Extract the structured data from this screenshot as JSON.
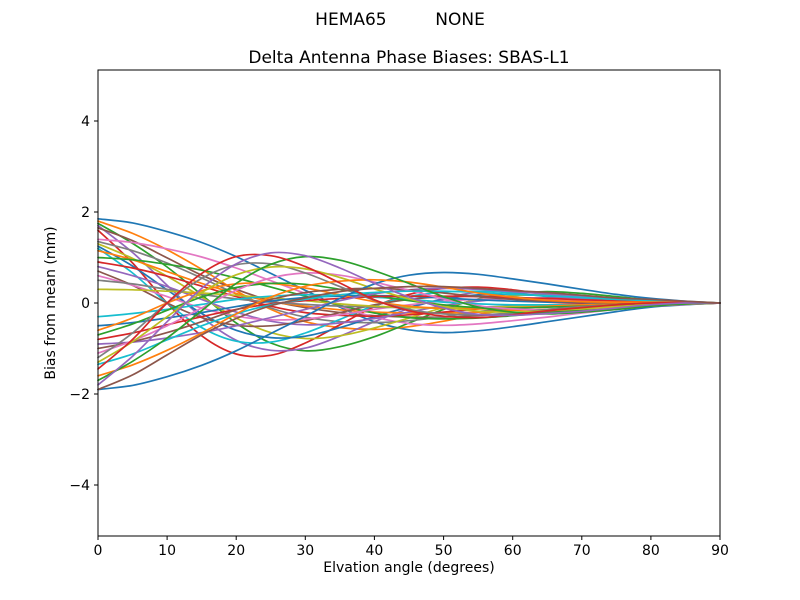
{
  "figure": {
    "background": "#ffffff",
    "axes_color": "#000000",
    "text_color": "#000000"
  },
  "chart_data": {
    "type": "line",
    "suptitle": "HEMA65         NONE",
    "title": "Delta Antenna Phase Biases: SBAS-L1",
    "xlabel": "Elvation angle (degrees)",
    "ylabel": "Bias from mean (mm)",
    "xlim": [
      0,
      90
    ],
    "ylim": [
      -5.12,
      5.12
    ],
    "x_ticks": [
      0,
      10,
      20,
      30,
      40,
      50,
      60,
      70,
      80,
      90
    ],
    "y_ticks": [
      -4,
      -2,
      0,
      2,
      4
    ],
    "y_tick_labels": [
      "−4",
      "−2",
      "0",
      "2",
      "4"
    ],
    "grid": false,
    "legend": "none",
    "palette": [
      "#1f77b4",
      "#ff7f0e",
      "#2ca02c",
      "#d62728",
      "#9467bd",
      "#8c564b",
      "#e377c2",
      "#7f7f7f",
      "#bcbd22",
      "#17becf"
    ],
    "x": [
      0,
      5,
      10,
      15,
      20,
      25,
      30,
      35,
      40,
      45,
      50,
      55,
      60,
      65,
      70,
      75,
      80,
      85,
      90
    ],
    "series": [
      [
        1.85,
        1.76,
        1.57,
        1.33,
        1.02,
        0.65,
        0.28,
        -0.09,
        -0.41,
        -0.59,
        -0.65,
        -0.61,
        -0.52,
        -0.41,
        -0.3,
        -0.19,
        -0.09,
        -0.04,
        0.0
      ],
      [
        1.8,
        1.53,
        1.17,
        0.74,
        0.27,
        -0.14,
        -0.41,
        -0.54,
        -0.58,
        -0.52,
        -0.4,
        -0.25,
        -0.14,
        -0.07,
        -0.04,
        -0.02,
        -0.02,
        -0.02,
        0.0
      ],
      [
        1.75,
        1.31,
        0.79,
        0.18,
        -0.44,
        -0.88,
        -1.05,
        -0.96,
        -0.74,
        -0.44,
        -0.14,
        0.09,
        0.21,
        0.25,
        0.21,
        0.14,
        0.07,
        0.02,
        0.0
      ],
      [
        1.6,
        0.88,
        0.0,
        -0.72,
        -1.12,
        -1.15,
        -0.88,
        -0.48,
        -0.08,
        0.19,
        0.32,
        0.35,
        0.29,
        0.19,
        0.11,
        0.05,
        0.0,
        -0.02,
        0.0
      ],
      [
        1.7,
        1.11,
        0.39,
        -0.31,
        -0.82,
        -1.04,
        -0.99,
        -0.73,
        -0.41,
        -0.12,
        0.1,
        0.24,
        0.26,
        0.22,
        0.17,
        0.1,
        0.03,
        0.0,
        0.0
      ],
      [
        1.65,
        1.37,
        0.99,
        0.61,
        0.3,
        0.05,
        -0.1,
        -0.21,
        -0.28,
        -0.31,
        -0.31,
        -0.28,
        -0.23,
        -0.2,
        -0.15,
        -0.1,
        -0.07,
        -0.03,
        0.0
      ],
      [
        1.4,
        1.33,
        1.19,
        1.01,
        0.77,
        0.49,
        0.21,
        -0.07,
        -0.31,
        -0.45,
        -0.49,
        -0.46,
        -0.39,
        -0.31,
        -0.22,
        -0.14,
        -0.07,
        -0.03,
        0.0
      ],
      [
        1.35,
        1.15,
        0.88,
        0.55,
        0.2,
        -0.11,
        -0.31,
        -0.41,
        -0.43,
        -0.39,
        -0.3,
        -0.19,
        -0.11,
        -0.05,
        -0.03,
        -0.01,
        -0.01,
        -0.01,
        0.0
      ],
      [
        1.3,
        0.98,
        0.59,
        0.13,
        -0.33,
        -0.65,
        -0.78,
        -0.72,
        -0.55,
        -0.33,
        -0.1,
        0.07,
        0.16,
        0.18,
        0.16,
        0.1,
        0.05,
        0.01,
        0.0
      ],
      [
        1.2,
        0.66,
        0.0,
        -0.54,
        -0.84,
        -0.86,
        -0.66,
        -0.36,
        -0.06,
        0.14,
        0.24,
        0.26,
        0.22,
        0.14,
        0.08,
        0.04,
        0.0,
        -0.01,
        0.0
      ],
      [
        1.25,
        0.81,
        0.29,
        -0.23,
        -0.6,
        -0.76,
        -0.73,
        -0.54,
        -0.3,
        -0.09,
        0.08,
        0.18,
        0.19,
        0.16,
        0.13,
        0.08,
        0.03,
        0.0,
        0.0
      ],
      [
        1.15,
        0.95,
        0.69,
        0.43,
        0.21,
        0.03,
        -0.07,
        -0.15,
        -0.2,
        -0.22,
        -0.22,
        -0.2,
        -0.16,
        -0.14,
        -0.1,
        -0.07,
        -0.05,
        -0.02,
        0.0
      ],
      [
        1.0,
        0.95,
        0.85,
        0.72,
        0.55,
        0.35,
        0.15,
        -0.05,
        -0.22,
        -0.32,
        -0.35,
        -0.33,
        -0.28,
        -0.22,
        -0.16,
        -0.1,
        -0.05,
        -0.02,
        0.0
      ],
      [
        0.9,
        0.77,
        0.59,
        0.37,
        0.14,
        -0.07,
        -0.21,
        -0.27,
        -0.29,
        -0.26,
        -0.2,
        -0.13,
        -0.07,
        -0.04,
        -0.02,
        -0.01,
        -0.01,
        -0.01,
        0.0
      ],
      [
        0.8,
        0.6,
        0.36,
        0.08,
        -0.2,
        -0.4,
        -0.48,
        -0.44,
        -0.34,
        -0.2,
        -0.06,
        0.04,
        0.1,
        0.11,
        0.1,
        0.06,
        0.03,
        0.01,
        0.0
      ],
      [
        0.7,
        0.39,
        0.0,
        -0.32,
        -0.49,
        -0.5,
        -0.39,
        -0.21,
        -0.04,
        0.08,
        0.14,
        0.15,
        0.13,
        0.08,
        0.05,
        0.02,
        0.0,
        -0.01,
        0.0
      ],
      [
        0.6,
        0.39,
        0.14,
        -0.11,
        -0.29,
        -0.37,
        -0.35,
        -0.26,
        -0.14,
        -0.04,
        0.04,
        0.08,
        0.09,
        0.08,
        0.06,
        0.04,
        0.01,
        0.0,
        0.0
      ],
      [
        0.5,
        0.42,
        0.3,
        0.19,
        0.09,
        0.02,
        -0.03,
        -0.07,
        -0.09,
        -0.1,
        -0.1,
        -0.09,
        -0.07,
        -0.06,
        -0.05,
        -0.03,
        -0.02,
        -0.01,
        0.0
      ],
      [
        0.3,
        0.29,
        0.26,
        0.22,
        0.17,
        0.11,
        0.05,
        -0.02,
        -0.07,
        -0.1,
        -0.11,
        -0.1,
        -0.08,
        -0.07,
        -0.05,
        -0.03,
        -0.02,
        -0.01,
        0.0
      ],
      [
        -0.3,
        -0.23,
        -0.14,
        -0.03,
        0.08,
        0.15,
        0.18,
        0.17,
        0.13,
        0.08,
        0.02,
        -0.02,
        -0.04,
        -0.04,
        -0.04,
        -0.02,
        -0.01,
        0.0,
        0.0
      ],
      [
        -0.5,
        -0.43,
        -0.33,
        -0.21,
        -0.08,
        0.04,
        0.12,
        0.15,
        0.16,
        0.15,
        0.11,
        0.07,
        0.04,
        0.02,
        0.01,
        0.01,
        0.01,
        0.01,
        0.0
      ],
      [
        -0.6,
        -0.33,
        0.0,
        0.27,
        0.42,
        0.43,
        0.33,
        0.18,
        0.03,
        -0.07,
        -0.12,
        -0.13,
        -0.11,
        -0.07,
        -0.04,
        -0.02,
        0.0,
        0.01,
        0.0
      ],
      [
        -0.7,
        -0.46,
        -0.16,
        0.13,
        0.34,
        0.43,
        0.41,
        0.3,
        0.17,
        0.05,
        -0.04,
        -0.1,
        -0.11,
        -0.09,
        -0.07,
        -0.04,
        -0.01,
        0.0,
        0.0
      ],
      [
        -0.8,
        -0.66,
        -0.48,
        -0.3,
        -0.14,
        -0.02,
        0.05,
        0.1,
        0.14,
        0.15,
        0.15,
        0.14,
        0.11,
        0.1,
        0.07,
        0.05,
        0.03,
        0.02,
        0.0
      ],
      [
        -0.9,
        -0.86,
        -0.77,
        -0.65,
        -0.5,
        -0.32,
        -0.14,
        0.05,
        0.2,
        0.29,
        0.32,
        0.3,
        0.25,
        0.2,
        0.14,
        0.09,
        0.05,
        0.02,
        0.0
      ],
      [
        -1.0,
        -0.85,
        -0.65,
        -0.41,
        -0.15,
        0.08,
        0.23,
        0.3,
        0.32,
        0.29,
        0.22,
        0.14,
        0.08,
        0.04,
        0.02,
        0.01,
        0.01,
        0.01,
        0.0
      ],
      [
        -1.1,
        -0.83,
        -0.5,
        -0.11,
        0.28,
        0.55,
        0.66,
        0.61,
        0.46,
        0.28,
        0.09,
        -0.06,
        -0.13,
        -0.15,
        -0.13,
        -0.09,
        -0.04,
        -0.01,
        0.0
      ],
      [
        -1.2,
        -0.66,
        0.0,
        0.54,
        0.84,
        0.86,
        0.66,
        0.36,
        0.06,
        -0.14,
        -0.24,
        -0.26,
        -0.22,
        -0.14,
        -0.08,
        -0.04,
        0.0,
        0.01,
        0.0
      ],
      [
        -1.3,
        -0.85,
        -0.3,
        0.23,
        0.62,
        0.79,
        0.75,
        0.56,
        0.31,
        0.09,
        -0.08,
        -0.18,
        -0.2,
        -0.17,
        -0.13,
        -0.08,
        -0.03,
        0.0,
        0.0
      ],
      [
        -1.35,
        -1.12,
        -0.81,
        -0.5,
        -0.24,
        -0.04,
        0.08,
        0.18,
        0.23,
        0.26,
        0.26,
        0.23,
        0.19,
        0.16,
        0.12,
        0.08,
        0.05,
        0.03,
        0.0
      ],
      [
        -1.9,
        -1.81,
        -1.62,
        -1.37,
        -1.05,
        -0.67,
        -0.29,
        0.1,
        0.42,
        0.61,
        0.67,
        0.63,
        0.53,
        0.42,
        0.3,
        0.19,
        0.1,
        0.04,
        0.0
      ],
      [
        -1.6,
        -1.36,
        -1.04,
        -0.66,
        -0.24,
        0.13,
        0.37,
        0.48,
        0.51,
        0.46,
        0.35,
        0.22,
        0.13,
        0.06,
        0.03,
        0.02,
        0.02,
        0.02,
        0.0
      ],
      [
        -1.7,
        -1.28,
        -0.77,
        -0.17,
        0.43,
        0.85,
        1.02,
        0.94,
        0.71,
        0.43,
        0.14,
        -0.09,
        -0.2,
        -0.24,
        -0.2,
        -0.14,
        -0.07,
        -0.02,
        0.0
      ],
      [
        -1.45,
        -0.8,
        0.0,
        0.65,
        1.02,
        1.04,
        0.8,
        0.44,
        0.07,
        -0.17,
        -0.29,
        -0.32,
        -0.26,
        -0.17,
        -0.1,
        -0.04,
        0.0,
        0.01,
        0.0
      ],
      [
        -1.8,
        -1.17,
        -0.41,
        0.32,
        0.86,
        1.1,
        1.04,
        0.77,
        0.43,
        0.13,
        -0.11,
        -0.25,
        -0.27,
        -0.23,
        -0.18,
        -0.11,
        -0.04,
        0.0,
        0.0
      ],
      [
        -1.9,
        -1.58,
        -1.14,
        -0.7,
        -0.34,
        -0.06,
        0.11,
        0.25,
        0.32,
        0.36,
        0.36,
        0.32,
        0.27,
        0.23,
        0.17,
        0.11,
        0.08,
        0.04,
        0.0
      ]
    ]
  }
}
